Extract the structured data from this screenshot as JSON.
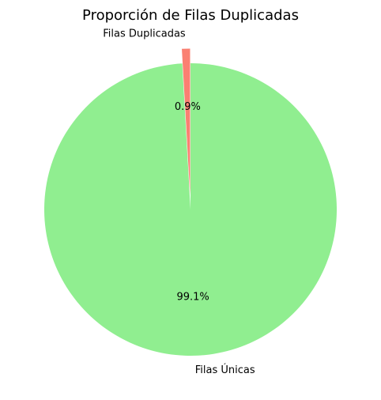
{
  "chart_data": {
    "type": "pie",
    "title": "Proporción de Filas Duplicadas",
    "slices": [
      {
        "label": "Filas Duplicadas",
        "value": 0.9,
        "pct_label": "0.9%",
        "color": "#fa8072",
        "exploded": true
      },
      {
        "label": "Filas Únicas",
        "value": 99.1,
        "pct_label": "99.1%",
        "color": "#90ee90",
        "exploded": false
      }
    ],
    "start_angle_deg": 90,
    "direction": "counterclockwise",
    "grid": false,
    "legend": "none"
  }
}
